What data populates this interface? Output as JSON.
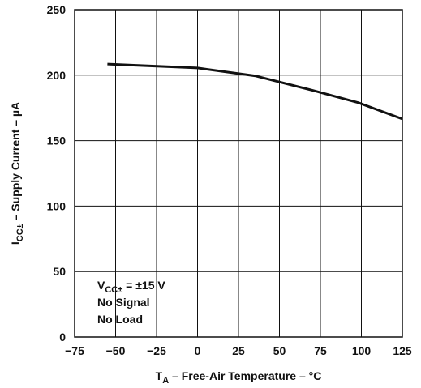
{
  "chart_data": {
    "type": "line",
    "title": "",
    "xlabel": {
      "main": "T",
      "sub": "A",
      "rest": " – Free-Air Temperature – °C"
    },
    "ylabel": {
      "main": "I",
      "sub": "CC±",
      "rest": " – Supply Current – µA"
    },
    "xlim": [
      -75,
      125
    ],
    "ylim": [
      0,
      250
    ],
    "xticks": [
      -75,
      -50,
      -25,
      0,
      25,
      50,
      75,
      100,
      125
    ],
    "yticks": [
      0,
      50,
      100,
      150,
      200,
      250
    ],
    "grid": true,
    "series": [
      {
        "color": "#111111",
        "x": [
          -55,
          0,
          35,
          70,
          98,
          125
        ],
        "y": [
          208.5,
          205.5,
          199.5,
          188.5,
          179,
          166.5
        ]
      }
    ],
    "annotations": [
      {
        "main": "V",
        "sub": "CC±",
        "rest": " = ±15 V"
      },
      {
        "text": "No Signal"
      },
      {
        "text": "No Load"
      }
    ]
  }
}
